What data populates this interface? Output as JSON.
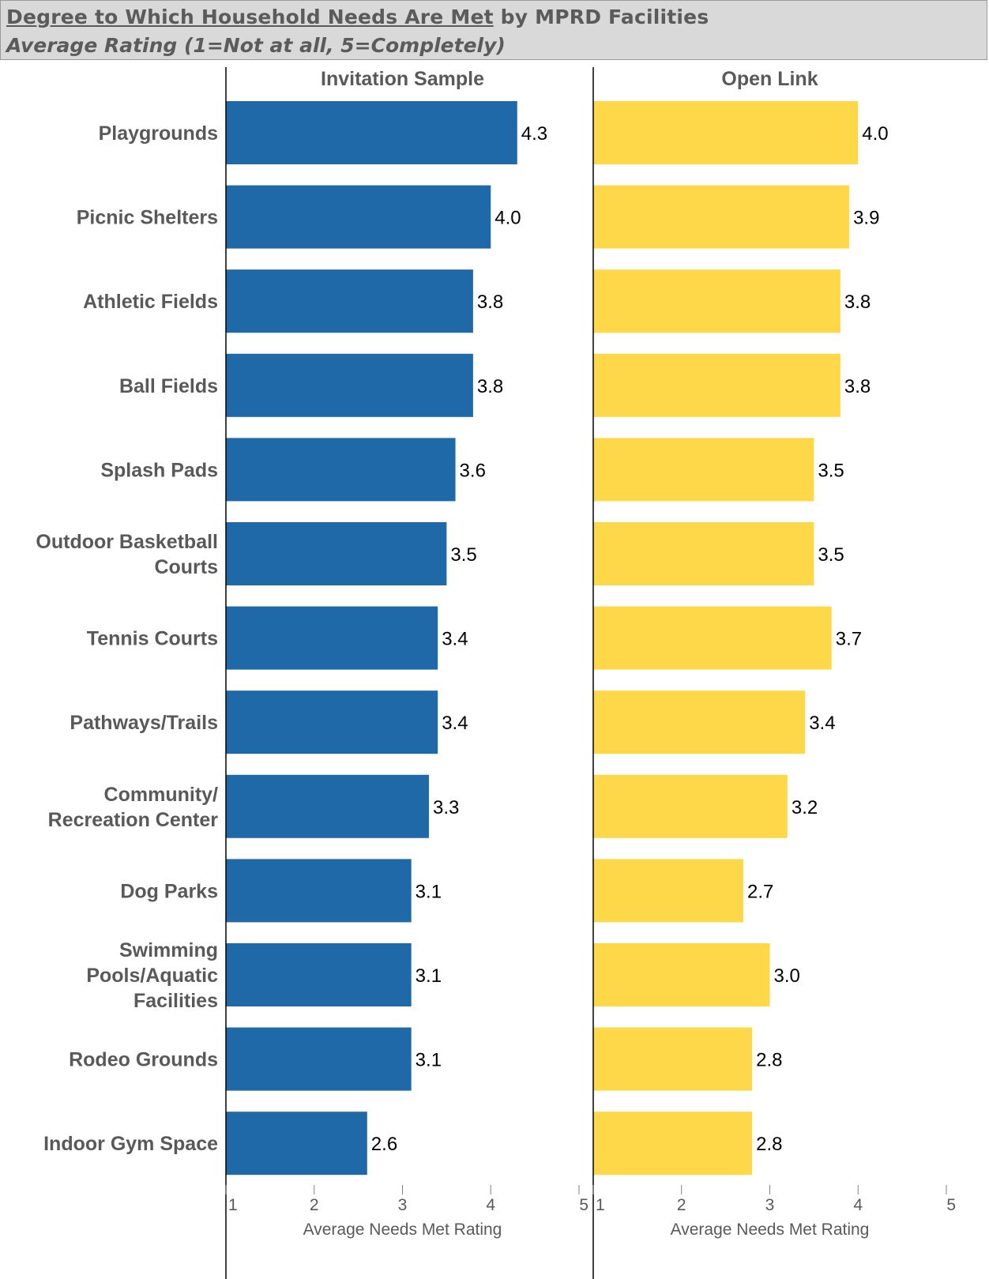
{
  "title": {
    "underlined": "Degree to Which Household Needs Are Met",
    "rest": " by MPRD Facilities",
    "subtitle": "Average Rating (1=Not at all, 5=Completely)"
  },
  "colors": {
    "invitation": "#1f69a8",
    "open_link": "#ffd84a",
    "axis": "#000000",
    "banner": "#d9d9d9"
  },
  "chart_data": {
    "type": "bar",
    "orientation": "horizontal",
    "categories": [
      "Playgrounds",
      "Picnic Shelters",
      "Athletic Fields",
      "Ball Fields",
      "Splash Pads",
      "Outdoor Basketball Courts",
      "Tennis Courts",
      "Pathways/Trails",
      "Community/ Recreation Center",
      "Dog Parks",
      "Swimming Pools/Aquatic Facilities",
      "Rodeo Grounds",
      "Indoor Gym Space"
    ],
    "category_lines": [
      [
        "Playgrounds"
      ],
      [
        "Picnic Shelters"
      ],
      [
        "Athletic Fields"
      ],
      [
        "Ball Fields"
      ],
      [
        "Splash Pads"
      ],
      [
        "Outdoor Basketball",
        "Courts"
      ],
      [
        "Tennis Courts"
      ],
      [
        "Pathways/Trails"
      ],
      [
        "Community/",
        "Recreation Center"
      ],
      [
        "Dog Parks"
      ],
      [
        "Swimming",
        "Pools/Aquatic",
        "Facilities"
      ],
      [
        "Rodeo Grounds"
      ],
      [
        "Indoor Gym Space"
      ]
    ],
    "series": [
      {
        "name": "Invitation Sample",
        "values": [
          4.3,
          4.0,
          3.8,
          3.8,
          3.6,
          3.5,
          3.4,
          3.4,
          3.3,
          3.1,
          3.1,
          3.1,
          2.6
        ],
        "labels": [
          "4.3",
          "4.0",
          "3.8",
          "3.8",
          "3.6",
          "3.5",
          "3.4",
          "3.4",
          "3.3",
          "3.1",
          "3.1",
          "3.1",
          "2.6"
        ]
      },
      {
        "name": "Open Link",
        "values": [
          4.0,
          3.9,
          3.8,
          3.8,
          3.5,
          3.5,
          3.7,
          3.4,
          3.2,
          2.7,
          3.0,
          2.8,
          2.8
        ],
        "labels": [
          "4.0",
          "3.9",
          "3.8",
          "3.8",
          "3.5",
          "3.5",
          "3.7",
          "3.4",
          "3.2",
          "2.7",
          "3.0",
          "2.8",
          "2.8"
        ]
      }
    ],
    "xlabel": "Average Needs Met Rating",
    "xlim": [
      1,
      5
    ],
    "xticks": [
      "1",
      "2",
      "3",
      "4",
      "5"
    ],
    "grid": false
  }
}
